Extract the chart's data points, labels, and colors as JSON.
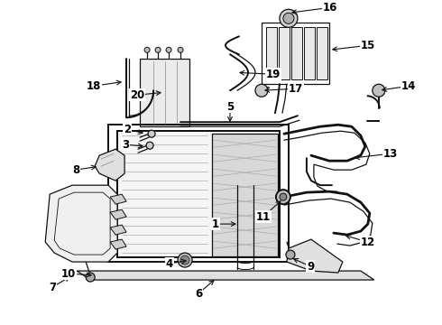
{
  "bg_color": "#ffffff",
  "line_color": "#111111",
  "label_color": "#000000",
  "fig_w": 4.9,
  "fig_h": 3.6,
  "dpi": 100,
  "label_fontsize": 8.5,
  "label_fontweight": "bold"
}
